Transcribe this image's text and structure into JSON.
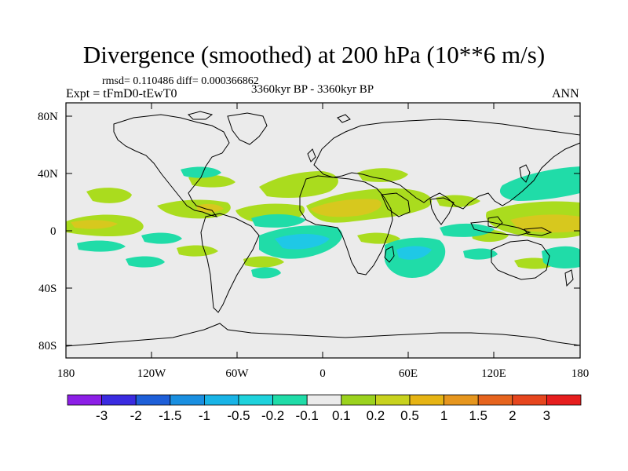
{
  "title": "Divergence (smoothed) at 200 hPa (10**6 m/s)",
  "stats": "rmsd= 0.110486 diff= 0.000366862",
  "experiment": "Expt = tFmD0-tEwT0",
  "period": "3360kyr BP - 3360kyr BP",
  "season": "ANN",
  "lat_ticks": [
    "80N",
    "40N",
    "0",
    "40S",
    "80S"
  ],
  "lon_ticks": [
    "180",
    "120W",
    "60W",
    "0",
    "60E",
    "120E",
    "180"
  ],
  "colorbar": {
    "labels": [
      "-3",
      "-2",
      "-1.5",
      "-1",
      "-0.5",
      "-0.2",
      "-0.1",
      "0.1",
      "0.2",
      "0.5",
      "1",
      "1.5",
      "2",
      "3"
    ],
    "colors": [
      "#8c1fe6",
      "#3a2be0",
      "#1e5fd8",
      "#1a8fe0",
      "#19b4e6",
      "#1fd2dc",
      "#20dca8",
      "#ebebeb",
      "#9bd21e",
      "#c8d21e",
      "#e6b414",
      "#e6961e",
      "#e6641e",
      "#e6461e",
      "#e61e1e"
    ]
  },
  "colors": {
    "ocean": "#ebebeb",
    "pos_light": "#aadc1e",
    "pos_strong": "#d7c81e",
    "neg_light": "#20dca8",
    "neg_strong": "#1fc8e6"
  }
}
